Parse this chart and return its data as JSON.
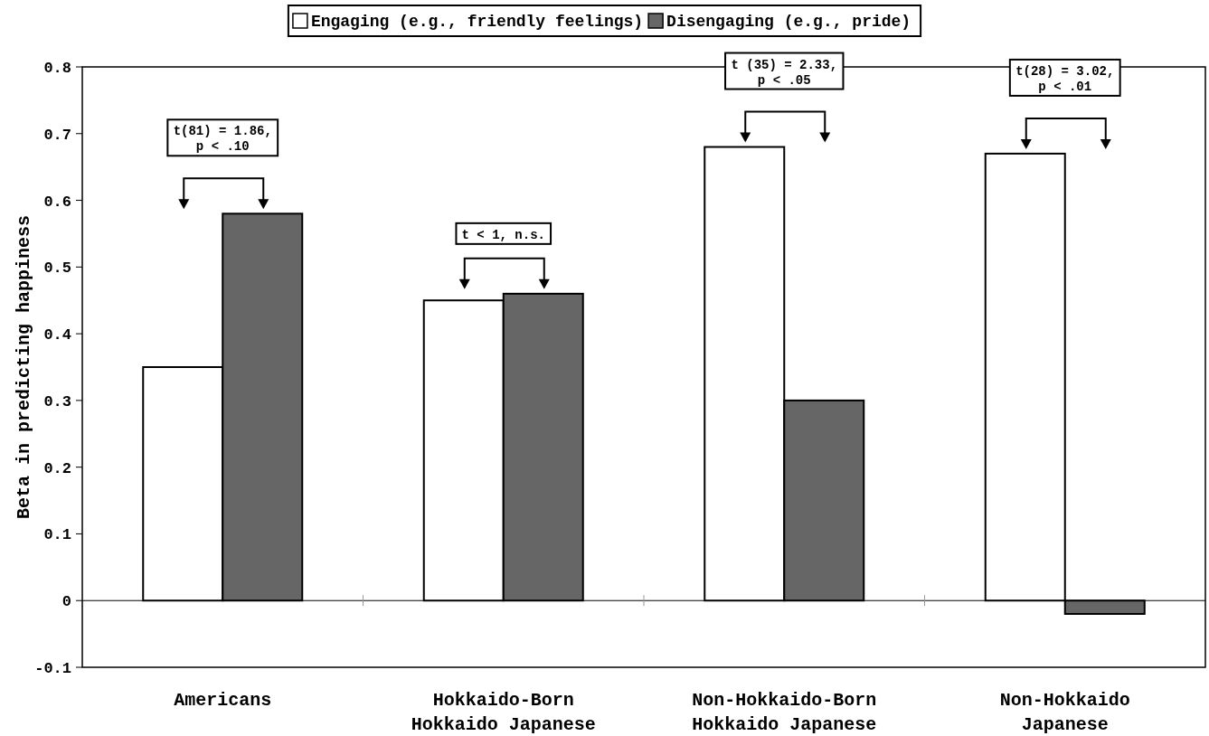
{
  "chart_data": {
    "type": "bar",
    "ylabel": "Beta in predicting happiness",
    "categories": [
      "Americans",
      "Hokkaido-Born Hokkaido Japanese",
      "Non-Hokkaido-Born Hokkaido Japanese",
      "Non-Hokkaido Japanese"
    ],
    "series": [
      {
        "name": "Engaging (e.g., friendly feelings)",
        "color": "#ffffff",
        "values": [
          0.35,
          0.45,
          0.68,
          0.67
        ]
      },
      {
        "name": "Disengaging (e.g., pride)",
        "color": "#666666",
        "values": [
          0.58,
          0.46,
          0.3,
          -0.02
        ]
      }
    ],
    "ylim": [
      -0.1,
      0.8
    ],
    "yticks": [
      -0.1,
      0,
      0.1,
      0.2,
      0.3,
      0.4,
      0.5,
      0.6,
      0.7,
      0.8
    ],
    "legend": "top",
    "annotations": [
      "t(81) = 1.86, p < .10",
      "t < 1, n.s.",
      "t (35) = 2.33, p < .05",
      "t(28) = 3.02, p < .01"
    ]
  }
}
